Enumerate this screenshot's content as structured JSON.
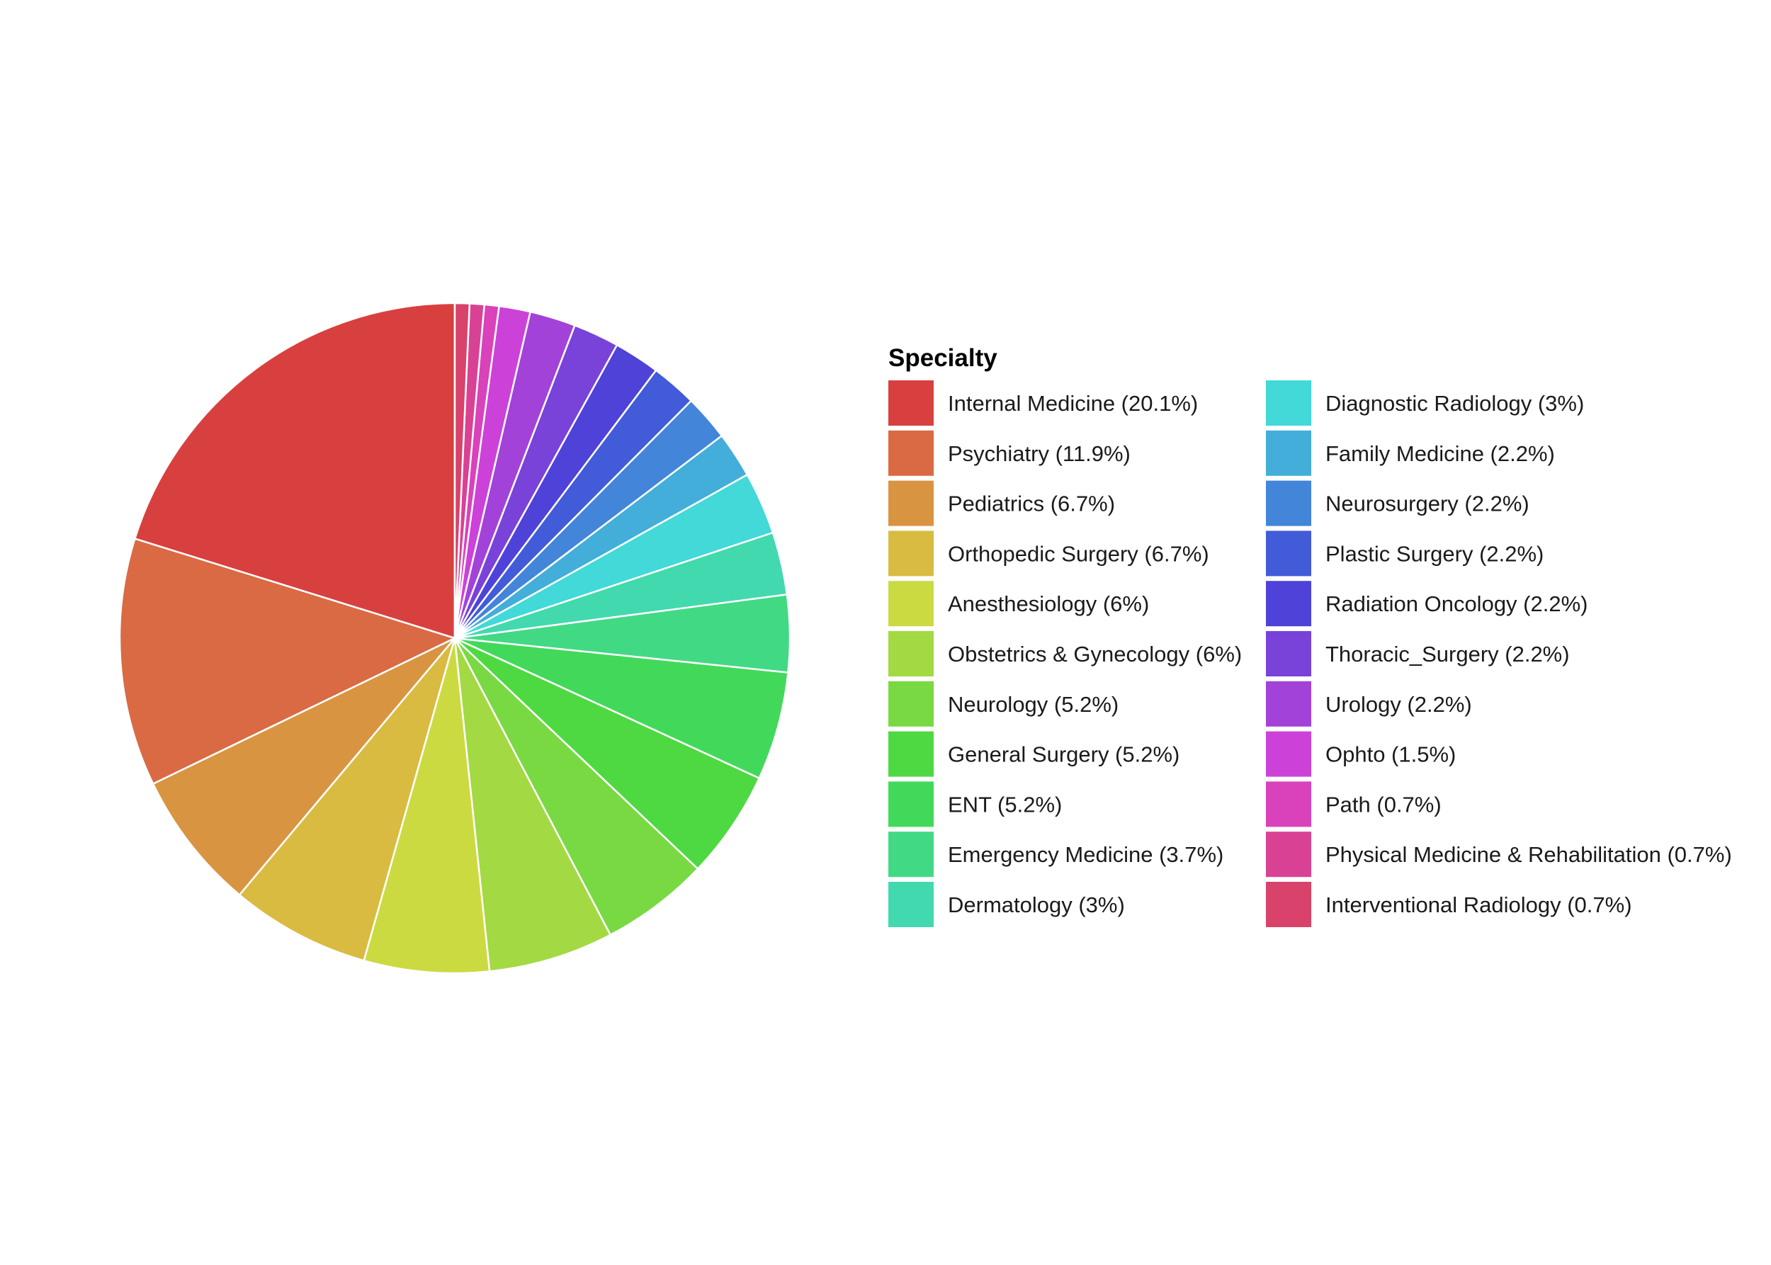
{
  "chart_data": {
    "type": "pie",
    "legend_title": "Specialty",
    "legend_placement": "right",
    "slices": [
      {
        "label": "Internal Medicine (20.1%)",
        "name": "Internal Medicine",
        "value": 20.1,
        "color": "#D8403F"
      },
      {
        "label": "Psychiatry (11.9%)",
        "name": "Psychiatry",
        "value": 11.9,
        "color": "#D96A43"
      },
      {
        "label": "Pediatrics (6.7%)",
        "name": "Pediatrics",
        "value": 6.7,
        "color": "#D99442"
      },
      {
        "label": "Orthopedic Surgery (6.7%)",
        "name": "Orthopedic Surgery",
        "value": 6.7,
        "color": "#D9BB42"
      },
      {
        "label": "Anesthesiology (6%)",
        "name": "Anesthesiology",
        "value": 6.0,
        "color": "#CCDA42"
      },
      {
        "label": "Obstetrics & Gynecology (6%)",
        "name": "Obstetrics & Gynecology",
        "value": 6.0,
        "color": "#A3D942"
      },
      {
        "label": "Neurology (5.2%)",
        "name": "Neurology",
        "value": 5.2,
        "color": "#79D942"
      },
      {
        "label": "General Surgery (5.2%)",
        "name": "General Surgery",
        "value": 5.2,
        "color": "#4ED942"
      },
      {
        "label": "ENT (5.2%)",
        "name": "ENT",
        "value": 5.2,
        "color": "#42D95B"
      },
      {
        "label": "Emergency Medicine (3.7%)",
        "name": "Emergency Medicine",
        "value": 3.7,
        "color": "#42D985"
      },
      {
        "label": "Dermatology (3%)",
        "name": "Dermatology",
        "value": 3.0,
        "color": "#42D9AE"
      },
      {
        "label": "Diagnostic Radiology (3%)",
        "name": "Diagnostic Radiology",
        "value": 3.0,
        "color": "#42D9D8"
      },
      {
        "label": "Family Medicine (2.2%)",
        "name": "Family Medicine",
        "value": 2.2,
        "color": "#42AED9"
      },
      {
        "label": "Neurosurgery (2.2%)",
        "name": "Neurosurgery",
        "value": 2.2,
        "color": "#4285D9"
      },
      {
        "label": "Plastic Surgery (2.2%)",
        "name": "Plastic Surgery",
        "value": 2.2,
        "color": "#425BD9"
      },
      {
        "label": "Radiation Oncology (2.2%)",
        "name": "Radiation Oncology",
        "value": 2.2,
        "color": "#4E42D9"
      },
      {
        "label": "Thoracic_Surgery (2.2%)",
        "name": "Thoracic_Surgery",
        "value": 2.2,
        "color": "#7942D9"
      },
      {
        "label": "Urology (2.2%)",
        "name": "Urology",
        "value": 2.2,
        "color": "#A342D9"
      },
      {
        "label": "Ophto (1.5%)",
        "name": "Ophto",
        "value": 1.5,
        "color": "#CC42D9"
      },
      {
        "label": "Path (0.7%)",
        "name": "Path",
        "value": 0.7,
        "color": "#D942BB"
      },
      {
        "label": "Physical Medicine & Rehabilitation (0.7%)",
        "name": "Physical Medicine & Rehabilitation",
        "value": 0.7,
        "color": "#D94294"
      },
      {
        "label": "Interventional Radiology (0.7%)",
        "name": "Interventional Radiology",
        "value": 0.7,
        "color": "#D9426A"
      }
    ]
  }
}
